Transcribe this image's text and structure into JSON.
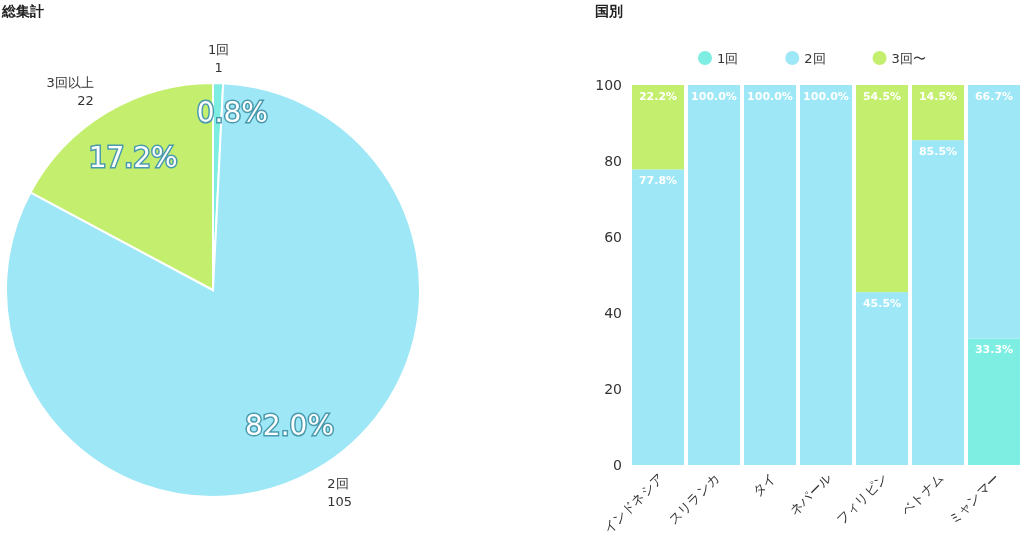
{
  "chart_data": [
    {
      "type": "pie",
      "title": "総集計",
      "categories": [
        "1回",
        "2回",
        "3回以上"
      ],
      "values": [
        1,
        105,
        22
      ],
      "colors": [
        "#7eeee2",
        "#9ee7f6",
        "#c4ef6e"
      ],
      "data_labels": true,
      "annotations": [
        "0.8%",
        "82.0%",
        "17.2%"
      ]
    },
    {
      "type": "bar",
      "title": "国別",
      "stacked": true,
      "categories": [
        "インドネシア",
        "スリランカ",
        "タイ",
        "ネパール",
        "フィリピン",
        "ベトナム",
        "ミャンマー"
      ],
      "ylim": [
        0,
        100
      ],
      "yticks": [
        0,
        20,
        40,
        60,
        80,
        100
      ],
      "legend": "top",
      "grid": false,
      "series": [
        {
          "name": "1回",
          "color": "#7eeee2",
          "values": [
            null,
            null,
            null,
            null,
            null,
            null,
            33.3
          ],
          "value_labels": [
            null,
            null,
            null,
            null,
            null,
            null,
            "33.3%"
          ]
        },
        {
          "name": "2回",
          "color": "#9ee7f6",
          "values": [
            77.8,
            100,
            100,
            100,
            45.5,
            85.5,
            66.7
          ],
          "value_labels": [
            "77.8%",
            "100.0%",
            "100.0%",
            "100.0%",
            "45.5%",
            "85.5%",
            "66.7%"
          ]
        },
        {
          "name": "3回〜",
          "color": "#c4ef6e",
          "values": [
            22.2,
            null,
            null,
            null,
            54.5,
            14.5,
            null
          ],
          "value_labels": [
            "22.2%",
            null,
            null,
            null,
            "54.5%",
            "14.5%",
            null
          ]
        }
      ]
    }
  ]
}
